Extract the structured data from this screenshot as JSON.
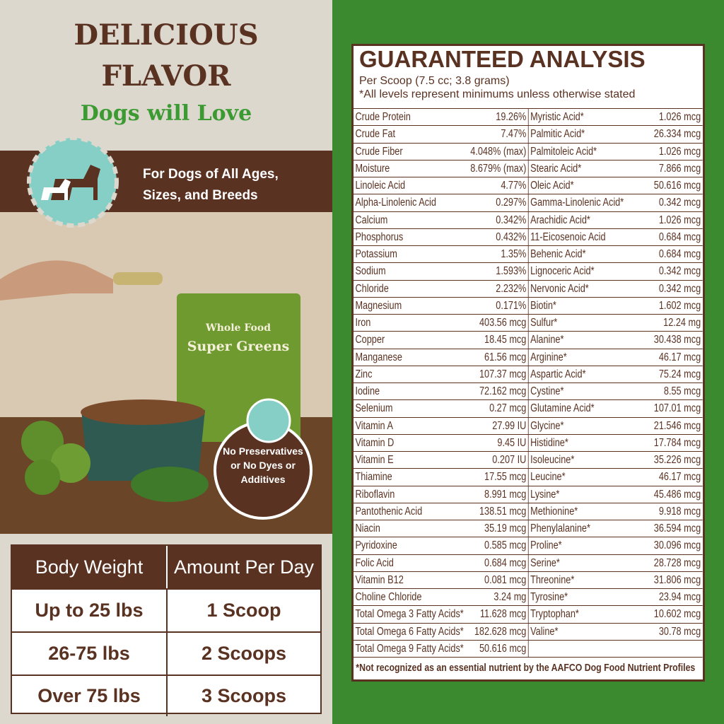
{
  "left_panel": {
    "title_line1": "DELICIOUS",
    "title_line2": "FLAVOR",
    "subtitle": "Dogs will Love",
    "banner": [
      "For Dogs of All Ages,",
      "Sizes, and Breeds"
    ],
    "bag": [
      "Whole Food",
      "Super Greens"
    ],
    "badge": [
      "No Preservatives",
      "or No Dyes or",
      "Additives"
    ],
    "feeding_table": {
      "header": [
        "Body Weight",
        "Amount Per Day"
      ],
      "rows": [
        [
          "Up to 25 lbs",
          "1 Scoop"
        ],
        [
          "26-75 lbs",
          "2 Scoops"
        ],
        [
          "Over 75 lbs",
          "3 Scoops"
        ]
      ]
    }
  },
  "analysis": {
    "title": "GUARANTEED ANALYSIS",
    "subtitle": [
      "Per Scoop (7.5 cc; 3.8 grams)",
      "*All levels represent minimums unless otherwise stated"
    ],
    "left_column": [
      [
        "Crude Protein",
        "19.26%"
      ],
      [
        "Crude Fat",
        "7.47%"
      ],
      [
        "Crude Fiber",
        "4.048% (max)"
      ],
      [
        "Moisture",
        "8.679% (max)"
      ],
      [
        "Linoleic Acid",
        "4.77%"
      ],
      [
        "Alpha-Linolenic Acid",
        "0.297%"
      ],
      [
        "Calcium",
        "0.342%"
      ],
      [
        "Phosphorus",
        "0.432%"
      ],
      [
        "Potassium",
        "1.35%"
      ],
      [
        "Sodium",
        "1.593%"
      ],
      [
        "Chloride",
        "2.232%"
      ],
      [
        "Magnesium",
        "0.171%"
      ],
      [
        "Iron",
        "403.56 mcg"
      ],
      [
        "Copper",
        "18.45 mcg"
      ],
      [
        "Manganese",
        "61.56 mcg"
      ],
      [
        "Zinc",
        "107.37 mcg"
      ],
      [
        "Iodine",
        "72.162 mcg"
      ],
      [
        "Selenium",
        "0.27 mcg"
      ],
      [
        "Vitamin A",
        "27.99 IU"
      ],
      [
        "Vitamin D",
        "9.45 IU"
      ],
      [
        "Vitamin E",
        "0.207 IU"
      ],
      [
        "Thiamine",
        "17.55 mcg"
      ],
      [
        "Riboflavin",
        "8.991 mcg"
      ],
      [
        "Pantothenic Acid",
        "138.51 mcg"
      ],
      [
        "Niacin",
        "35.19 mcg"
      ],
      [
        "Pyridoxine",
        "0.585 mcg"
      ],
      [
        "Folic Acid",
        "0.684 mcg"
      ],
      [
        "Vitamin B12",
        "0.081 mcg"
      ],
      [
        "Choline Chloride",
        "3.24 mg"
      ],
      [
        "Total Omega 3 Fatty Acids*",
        "11.628 mcg"
      ],
      [
        "Total Omega 6 Fatty Acids*",
        "182.628 mcg"
      ],
      [
        "Total Omega 9 Fatty Acids*",
        "50.616 mcg"
      ]
    ],
    "right_column": [
      [
        "Myristic Acid*",
        "1.026 mcg"
      ],
      [
        "Palmitic Acid*",
        "26.334 mcg"
      ],
      [
        "Palmitoleic Acid*",
        "1.026 mcg"
      ],
      [
        "Stearic Acid*",
        "7.866 mcg"
      ],
      [
        "Oleic Acid*",
        "50.616 mcg"
      ],
      [
        "Gamma-Linolenic Acid*",
        "0.342 mcg"
      ],
      [
        "Arachidic Acid*",
        "1.026 mcg"
      ],
      [
        "11-Eicosenoic Acid",
        "0.684 mcg"
      ],
      [
        "Behenic Acid*",
        "0.684 mcg"
      ],
      [
        "Lignoceric Acid*",
        "0.342 mcg"
      ],
      [
        "Nervonic Acid*",
        "0.342 mcg"
      ],
      [
        "Biotin*",
        "1.602 mcg"
      ],
      [
        "Sulfur*",
        "12.24 mg"
      ],
      [
        "Alanine*",
        "30.438 mcg"
      ],
      [
        "Arginine*",
        "46.17 mcg"
      ],
      [
        "Aspartic Acid*",
        "75.24 mcg"
      ],
      [
        "Cystine*",
        "8.55 mcg"
      ],
      [
        "Glutamine Acid*",
        "107.01 mcg"
      ],
      [
        "Glycine*",
        "21.546 mcg"
      ],
      [
        "Histidine*",
        "17.784 mcg"
      ],
      [
        "Isoleucine*",
        "35.226 mcg"
      ],
      [
        "Leucine*",
        "46.17 mcg"
      ],
      [
        "Lysine*",
        "45.486 mcg"
      ],
      [
        "Methionine*",
        "9.918 mcg"
      ],
      [
        "Phenylalanine*",
        "36.594 mcg"
      ],
      [
        "Proline*",
        "30.096 mcg"
      ],
      [
        "Serine*",
        "28.728 mcg"
      ],
      [
        "Threonine*",
        "31.806 mcg"
      ],
      [
        "Tyrosine*",
        "23.94 mcg"
      ],
      [
        "Tryptophan*",
        "10.602 mcg"
      ],
      [
        "Valine*",
        "30.78 mcg"
      ]
    ],
    "footnote": "*Not recognized as an essential nutrient by the AAFCO Dog Food Nutrient Profiles"
  }
}
